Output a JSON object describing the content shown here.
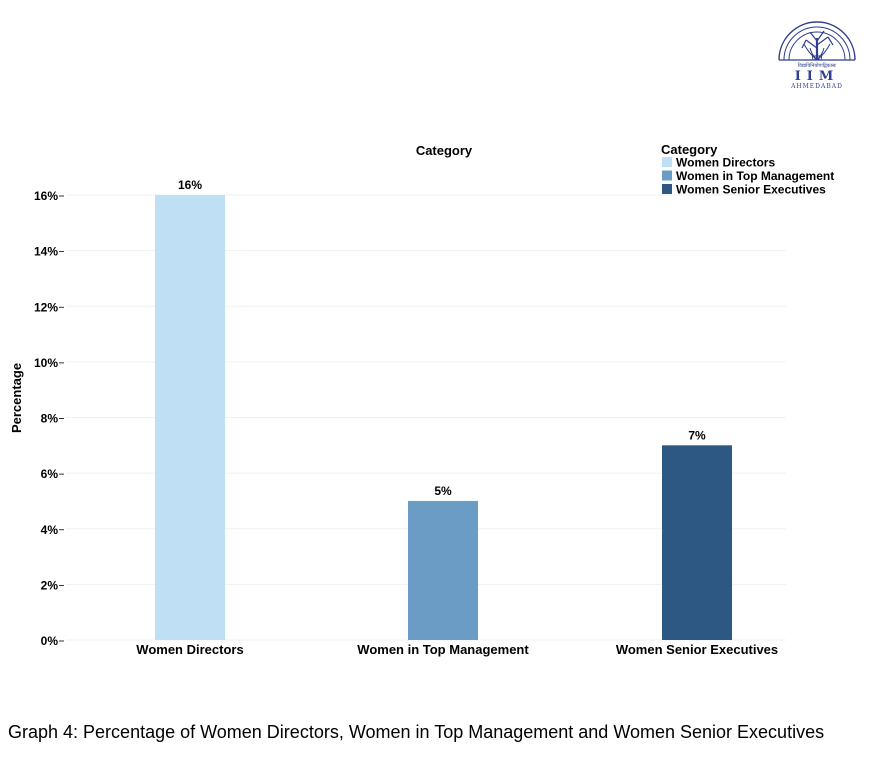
{
  "logo": {
    "icon": "iim-ahmedabad-tree-logo",
    "script_text": "विद्याविनियोगाद्विकासः",
    "wordmark": "IIM",
    "place": "AHMEDABAD",
    "color": "#2f3f8f"
  },
  "chart_data": {
    "type": "bar",
    "title": "Category",
    "xlabel": "",
    "ylabel": "Percentage",
    "categories": [
      "Women Directors",
      "Women in Top Management",
      "Women Senior Executives"
    ],
    "values": [
      16,
      5,
      7
    ],
    "value_labels": [
      "16%",
      "5%",
      "7%"
    ],
    "colors": [
      "#bfdff4",
      "#6a9cc5",
      "#2c5883"
    ],
    "ylim": [
      0,
      16
    ],
    "yticks": [
      0,
      2,
      4,
      6,
      8,
      10,
      12,
      14,
      16
    ],
    "ytick_labels": [
      "0%",
      "2%",
      "4%",
      "6%",
      "8%",
      "10%",
      "12%",
      "14%",
      "16%"
    ],
    "grid": true,
    "legend": {
      "title": "Category",
      "placement": "top-right",
      "entries": [
        "Women Directors",
        "Women in Top Management",
        "Women Senior Executives"
      ]
    }
  },
  "caption": "Graph 4: Percentage of Women Directors, Women in Top Management and Women Senior Executives"
}
